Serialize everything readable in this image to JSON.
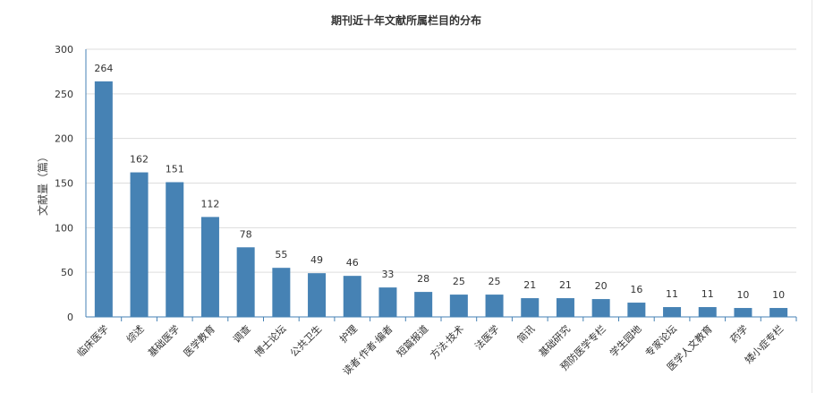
{
  "chart_data": {
    "type": "bar",
    "title": "期刊近十年文献所属栏目的分布",
    "xlabel": "",
    "ylabel": "文献量（篇）",
    "ylim": [
      0,
      300
    ],
    "yticks": [
      0,
      50,
      100,
      150,
      200,
      250,
      300
    ],
    "grid": true,
    "legend": "none",
    "bar_color": "#4682b4",
    "categories": [
      "临床医学",
      "综述",
      "基础医学",
      "医学教育",
      "调查",
      "博士论坛",
      "公共卫生",
      "护理",
      "读者·作者·编者",
      "短篇报道",
      "方法·技术",
      "法医学",
      "简讯",
      "基础研究",
      "预防医学专栏",
      "学生园地",
      "专家论坛",
      "医学人文教育",
      "药学",
      "矮小症专栏"
    ],
    "values": [
      264,
      162,
      151,
      112,
      78,
      55,
      49,
      46,
      33,
      28,
      25,
      25,
      21,
      21,
      20,
      16,
      11,
      11,
      10,
      10
    ]
  }
}
